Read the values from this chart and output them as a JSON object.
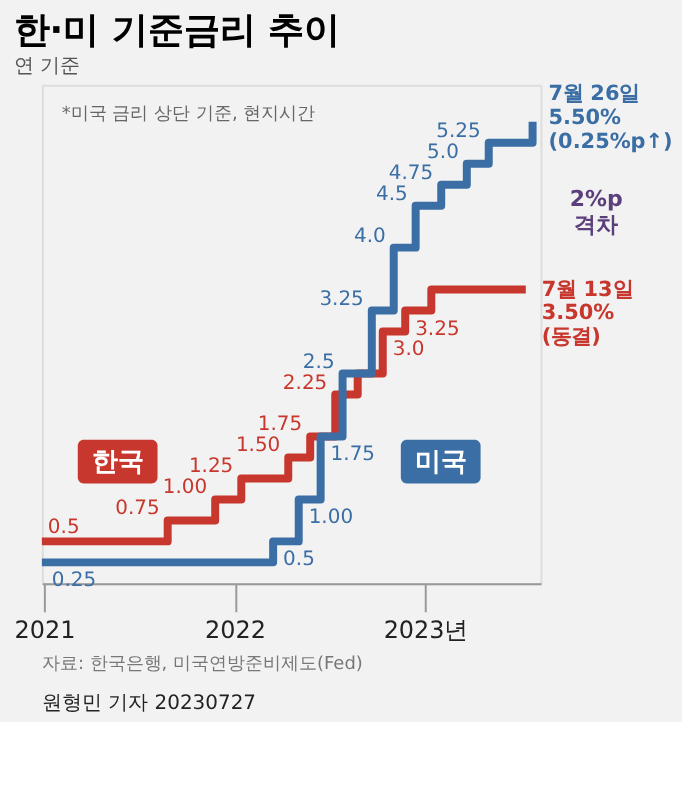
{
  "chart_data": {
    "type": "step",
    "title": "한·미 기준금리 추이",
    "subtitle": "연 기준",
    "xlim": [
      "2020-12-28",
      "2023-08-10"
    ],
    "xticks": [
      {
        "value": "2021-01-01",
        "label": "2021"
      },
      {
        "value": "2022-01-01",
        "label": "2022"
      },
      {
        "value": "2023-01-01",
        "label": "2023년"
      }
    ],
    "tick_labels": "x",
    "legend": false,
    "series": [
      {
        "name": "한국",
        "color": "#c8372d",
        "x": [
          "2020-12-28",
          "2021-08-26",
          "2021-11-25",
          "2022-01-14",
          "2022-04-14",
          "2022-05-26",
          "2022-07-13",
          "2022-08-25",
          "2022-10-12",
          "2022-11-24",
          "2023-01-13",
          "2023-02-23",
          "2023-04-11",
          "2023-05-25",
          "2023-07-13"
        ],
        "values": [
          0.5,
          0.75,
          1.0,
          1.25,
          1.5,
          1.75,
          2.25,
          2.5,
          3.0,
          3.25,
          3.5,
          3.5,
          3.5,
          3.5,
          3.5
        ],
        "value_labels": [
          "0.5",
          "0.75",
          "1.00",
          "1.25",
          "1.50",
          "1.75",
          "2.25",
          null,
          "3.0",
          "3.25",
          null,
          null,
          null,
          null,
          null
        ]
      },
      {
        "name": "미국",
        "color": "#3a6ea5",
        "x": [
          "2020-12-28",
          "2022-03-16",
          "2022-05-04",
          "2022-06-15",
          "2022-07-27",
          "2022-09-21",
          "2022-11-02",
          "2022-12-14",
          "2023-02-01",
          "2023-03-22",
          "2023-05-03",
          "2023-06-14",
          "2023-07-26"
        ],
        "values": [
          0.25,
          0.5,
          1.0,
          1.75,
          2.5,
          3.25,
          4.0,
          4.5,
          4.75,
          5.0,
          5.25,
          5.25,
          5.5
        ],
        "value_labels": [
          "0.25",
          "0.5",
          "1.00",
          "1.75",
          "2.5",
          "3.25",
          "4.0",
          "4.5",
          "4.75",
          "5.0",
          "5.25",
          null,
          null
        ]
      }
    ],
    "annotations": [
      {
        "text": "7월 26일 5.50% (0.25%p↑)",
        "x": "2023-07-26",
        "y": 5.5
      },
      {
        "text": "7월 13일 3.50% (동결)",
        "x": "2023-07-13",
        "y": 3.5
      },
      "2%p 격차",
      "*미국 금리 상단 기준, 현지시간",
      "자료: 한국은행, 미국연방준비제도(Fed)",
      "원형민 기자 20230727"
    ]
  }
}
